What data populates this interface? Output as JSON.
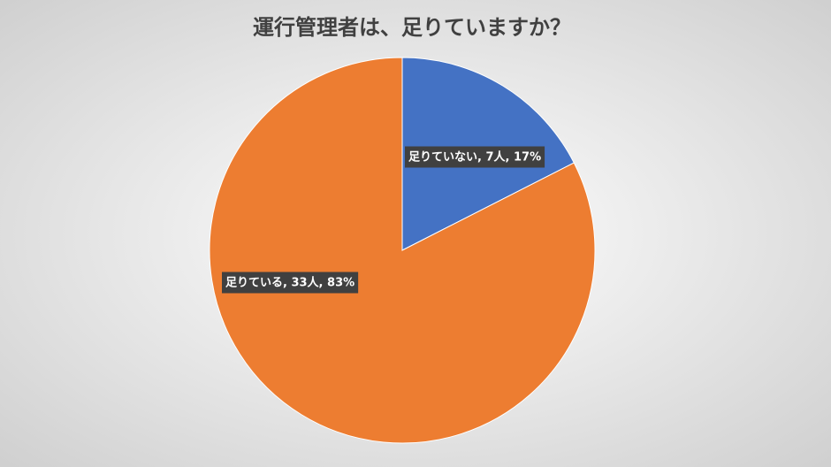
{
  "chart_data": {
    "type": "pie",
    "title": "運行管理者は、足りていますか？",
    "values": [
      7,
      33
    ],
    "value_labels": [
      "足りていない, 7人, 17%",
      "足りている, 33人, 83%"
    ],
    "colors": [
      "#4472c4",
      "#ed7d31"
    ]
  }
}
